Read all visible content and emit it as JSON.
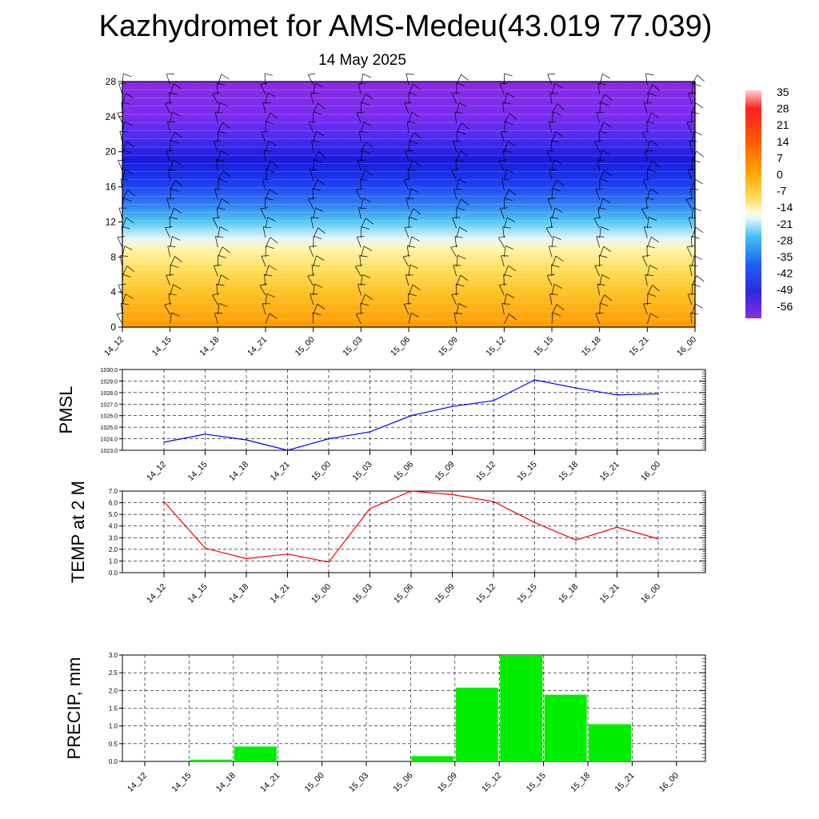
{
  "title": "Kazhydromet for AMS-Medeu(43.019 77.039)",
  "subtitle": "14 May 2025",
  "colors": {
    "pmsl_line": "#0000ff",
    "temp_line": "#ff0000",
    "precip_bar": "#00ee00",
    "grid": "#000000"
  },
  "chart_data": [
    {
      "type": "heatmap",
      "title": "",
      "ylim": [
        0,
        28
      ],
      "y_ticks": [
        "0",
        "4",
        "8",
        "12",
        "16",
        "20",
        "24",
        "28"
      ],
      "x_ticks": [
        "14_12",
        "14_15",
        "14_18",
        "14_21",
        "15_00",
        "15_03",
        "15_06",
        "15_09",
        "15_12",
        "15_15",
        "15_18",
        "15_21",
        "16_00"
      ],
      "colorbar_labels": [
        "35",
        "28",
        "21",
        "14",
        "7",
        "0",
        "-7",
        "-14",
        "-21",
        "-28",
        "-35",
        "-42",
        "-49",
        "-56"
      ],
      "overlay": "wind barbs"
    },
    {
      "type": "line",
      "ylabel": "PMSL",
      "ylim": [
        1023.0,
        1030.0
      ],
      "y_ticks": [
        "1023.0",
        "1024.0",
        "1025.0",
        "1026.0",
        "1027.0",
        "1028.0",
        "1029.0",
        "1030.0"
      ],
      "categories": [
        "14_12",
        "14_15",
        "14_18",
        "14_21",
        "15_00",
        "15_03",
        "15_06",
        "15_09",
        "15_12",
        "15_15",
        "15_18",
        "15_21",
        "16_00"
      ],
      "values": [
        1023.7,
        1024.4,
        1023.9,
        1023.0,
        1024.0,
        1024.6,
        1026.0,
        1026.8,
        1027.3,
        1029.1,
        1028.4,
        1027.8,
        1027.9
      ],
      "grid": true
    },
    {
      "type": "line",
      "ylabel": "TEMP at 2 M",
      "ylim": [
        0.0,
        7.0
      ],
      "y_ticks": [
        "0.0",
        "1.0",
        "2.0",
        "3.0",
        "4.0",
        "5.0",
        "6.0",
        "7.0"
      ],
      "categories": [
        "14_12",
        "14_15",
        "14_18",
        "14_21",
        "15_00",
        "15_03",
        "15_06",
        "15_09",
        "15_12",
        "15_15",
        "15_18",
        "15_21",
        "16_00"
      ],
      "values": [
        6.1,
        2.1,
        1.2,
        1.6,
        0.9,
        5.5,
        7.0,
        6.7,
        6.1,
        4.3,
        2.8,
        3.9,
        2.9
      ],
      "grid": true
    },
    {
      "type": "bar",
      "ylabel": "PRECIP, mm",
      "ylim": [
        0.0,
        3.0
      ],
      "y_ticks": [
        "0.0",
        "0.5",
        "1.0",
        "1.5",
        "2.0",
        "2.5",
        "3.0"
      ],
      "categories": [
        "14_12",
        "14_15",
        "14_18",
        "14_21",
        "15_00",
        "15_03",
        "15_06",
        "15_09",
        "15_12",
        "15_15",
        "15_18",
        "15_21",
        "16_00"
      ],
      "values": [
        0.0,
        0.05,
        0.42,
        0.0,
        0.0,
        0.0,
        0.15,
        2.08,
        3.0,
        1.88,
        1.05,
        0.0,
        0.0
      ],
      "grid": true
    }
  ]
}
